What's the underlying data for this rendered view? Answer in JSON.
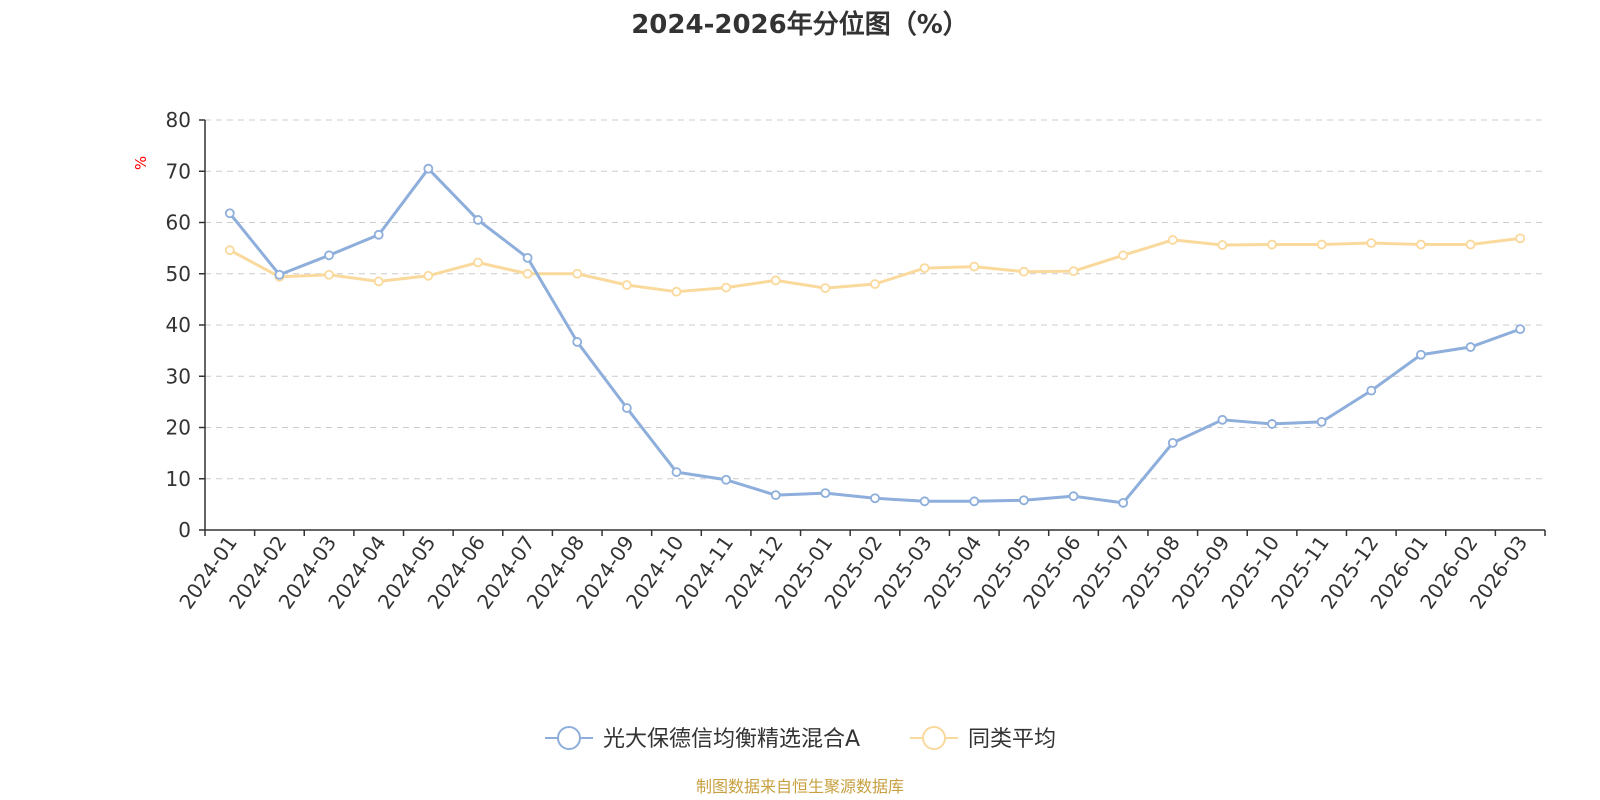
{
  "chart_data": {
    "type": "line",
    "title": "2024-2026年分位图（%）",
    "ylabel": "%",
    "xlabel": "",
    "ylim": [
      0,
      80
    ],
    "yticks": [
      0,
      10,
      20,
      30,
      40,
      50,
      60,
      70,
      80
    ],
    "grid": true,
    "legend_position": "bottom-center",
    "categories": [
      "2024-01",
      "2024-02",
      "2024-03",
      "2024-04",
      "2024-05",
      "2024-06",
      "2024-07",
      "2024-08",
      "2024-09",
      "2024-10",
      "2024-11",
      "2024-12",
      "2025-01",
      "2025-02",
      "2025-03",
      "2025-04",
      "2025-05",
      "2025-06",
      "2025-07",
      "2025-08",
      "2025-09",
      "2025-10",
      "2025-11",
      "2025-12",
      "2026-01",
      "2026-02",
      "2026-03"
    ],
    "series": [
      {
        "name": "光大保德信均衡精选混合A",
        "color": "#8eaedb",
        "values": [
          61.8,
          49.8,
          53.6,
          57.6,
          70.5,
          60.5,
          53.1,
          36.7,
          23.8,
          11.3,
          9.8,
          6.8,
          7.2,
          6.2,
          5.6,
          5.6,
          5.8,
          6.6,
          5.3,
          17.0,
          21.5,
          20.7,
          21.1,
          27.2,
          34.2,
          35.7,
          39.2
        ]
      },
      {
        "name": "同类平均",
        "color": "#fad99c",
        "values": [
          54.6,
          49.4,
          49.8,
          48.5,
          49.6,
          52.2,
          50.0,
          50.0,
          47.8,
          46.5,
          47.3,
          48.7,
          47.2,
          48.0,
          51.1,
          51.4,
          50.4,
          50.5,
          53.6,
          56.6,
          55.6,
          55.7,
          55.7,
          56.0,
          55.7,
          55.7,
          56.9
        ]
      }
    ]
  },
  "footer": {
    "source": "制图数据来自恒生聚源数据库"
  },
  "colors": {
    "axis": "#333333",
    "grid": "#cccccc",
    "ylabel": "#ff0000",
    "footer": "#c8a040"
  }
}
